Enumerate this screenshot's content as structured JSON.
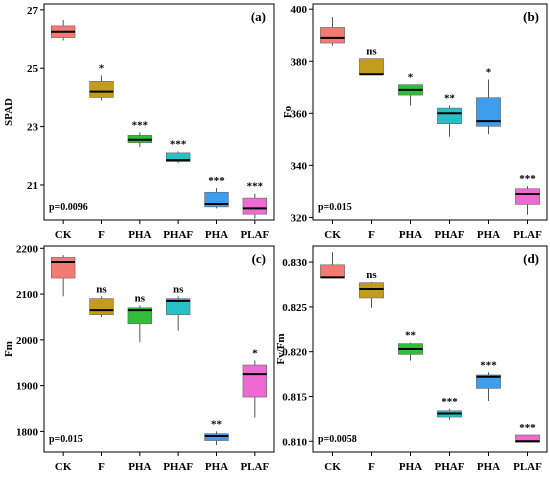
{
  "chart_data": [
    {
      "type": "box",
      "panel_label": "(a)",
      "ylabel": "SPAD",
      "categories": [
        "CK",
        "F",
        "PHA",
        "PHAF",
        "PHA",
        "PLAF"
      ],
      "yticks": [
        21,
        23,
        25,
        27
      ],
      "ylim": [
        19.8,
        27.2
      ],
      "p_label": "p=0.0096",
      "colors": [
        "#f47b72",
        "#c29c1d",
        "#2fbd3a",
        "#27c0c7",
        "#3d9ef0",
        "#f06ad4"
      ],
      "boxes": [
        {
          "min": 25.95,
          "q1": 26.05,
          "median": 26.25,
          "q3": 26.45,
          "max": 26.65,
          "sig": ""
        },
        {
          "min": 23.9,
          "q1": 24.0,
          "median": 24.2,
          "q3": 24.55,
          "max": 24.75,
          "sig": "*"
        },
        {
          "min": 22.3,
          "q1": 22.45,
          "median": 22.55,
          "q3": 22.7,
          "max": 22.8,
          "sig": "***"
        },
        {
          "min": 21.75,
          "q1": 21.8,
          "median": 21.85,
          "q3": 22.1,
          "max": 22.15,
          "sig": "***"
        },
        {
          "min": 20.2,
          "q1": 20.25,
          "median": 20.35,
          "q3": 20.75,
          "max": 20.9,
          "sig": "***"
        },
        {
          "min": 19.85,
          "q1": 20.0,
          "median": 20.2,
          "q3": 20.55,
          "max": 20.7,
          "sig": "***"
        }
      ]
    },
    {
      "type": "box",
      "panel_label": "(b)",
      "ylabel": "Fo",
      "categories": [
        "CK",
        "F",
        "PHA",
        "PHAF",
        "PHA",
        "PLAF"
      ],
      "yticks": [
        320,
        340,
        360,
        380,
        400
      ],
      "ylim": [
        319,
        402
      ],
      "p_label": "p=0.015",
      "colors": [
        "#f47b72",
        "#c29c1d",
        "#2fbd3a",
        "#27c0c7",
        "#3d9ef0",
        "#f06ad4"
      ],
      "boxes": [
        {
          "min": 386,
          "q1": 387,
          "median": 389,
          "q3": 393,
          "max": 397,
          "sig": ""
        },
        {
          "min": 375,
          "q1": 375,
          "median": 375,
          "q3": 381,
          "max": 381,
          "sig": "ns"
        },
        {
          "min": 363,
          "q1": 367,
          "median": 369,
          "q3": 371,
          "max": 371,
          "sig": "*"
        },
        {
          "min": 351,
          "q1": 356,
          "median": 360,
          "q3": 362,
          "max": 363,
          "sig": "**"
        },
        {
          "min": 352,
          "q1": 355,
          "median": 357,
          "q3": 366,
          "max": 373,
          "sig": "*"
        },
        {
          "min": 321,
          "q1": 325,
          "median": 329,
          "q3": 331,
          "max": 332,
          "sig": "***"
        }
      ]
    },
    {
      "type": "box",
      "panel_label": "(c)",
      "ylabel": "Fm",
      "categories": [
        "CK",
        "F",
        "PHA",
        "PHAF",
        "PHA",
        "PLAF"
      ],
      "yticks": [
        1800,
        1900,
        2000,
        2100,
        2200
      ],
      "ylim": [
        1755,
        2205
      ],
      "p_label": "p=0.015",
      "colors": [
        "#f47b72",
        "#c29c1d",
        "#2fbd3a",
        "#27c0c7",
        "#3d9ef0",
        "#f06ad4"
      ],
      "boxes": [
        {
          "min": 2095,
          "q1": 2135,
          "median": 2170,
          "q3": 2180,
          "max": 2185,
          "sig": ""
        },
        {
          "min": 2050,
          "q1": 2055,
          "median": 2065,
          "q3": 2090,
          "max": 2095,
          "sig": "ns"
        },
        {
          "min": 1995,
          "q1": 2035,
          "median": 2065,
          "q3": 2070,
          "max": 2075,
          "sig": "ns"
        },
        {
          "min": 2020,
          "q1": 2055,
          "median": 2085,
          "q3": 2090,
          "max": 2095,
          "sig": "ns"
        },
        {
          "min": 1770,
          "q1": 1780,
          "median": 1790,
          "q3": 1795,
          "max": 1800,
          "sig": "**"
        },
        {
          "min": 1830,
          "q1": 1875,
          "median": 1925,
          "q3": 1945,
          "max": 1955,
          "sig": "*"
        }
      ]
    },
    {
      "type": "box",
      "panel_label": "(d)",
      "ylabel": "Fv/Fm",
      "categories": [
        "CK",
        "F",
        "PHA",
        "PHAF",
        "PHA",
        "PLAF"
      ],
      "yticks": [
        0.81,
        0.815,
        0.82,
        0.825,
        0.83
      ],
      "ytick_labels": [
        "0.810",
        "0.815",
        "0.820",
        "0.825",
        "0.830"
      ],
      "ylim": [
        0.8088,
        0.8318
      ],
      "p_label": "p=0.0058",
      "colors": [
        "#f47b72",
        "#c29c1d",
        "#2fbd3a",
        "#27c0c7",
        "#3d9ef0",
        "#f06ad4"
      ],
      "boxes": [
        {
          "min": 0.8283,
          "q1": 0.8283,
          "median": 0.8283,
          "q3": 0.8297,
          "max": 0.8311,
          "sig": ""
        },
        {
          "min": 0.8249,
          "q1": 0.826,
          "median": 0.827,
          "q3": 0.8277,
          "max": 0.8278,
          "sig": "ns"
        },
        {
          "min": 0.819,
          "q1": 0.8197,
          "median": 0.8203,
          "q3": 0.8209,
          "max": 0.821,
          "sig": "**"
        },
        {
          "min": 0.8124,
          "q1": 0.8127,
          "median": 0.8131,
          "q3": 0.8134,
          "max": 0.8136,
          "sig": "***"
        },
        {
          "min": 0.8145,
          "q1": 0.8159,
          "median": 0.8172,
          "q3": 0.8174,
          "max": 0.8177,
          "sig": "***"
        },
        {
          "min": 0.8099,
          "q1": 0.8099,
          "median": 0.81,
          "q3": 0.8107,
          "max": 0.8107,
          "sig": "***"
        }
      ]
    }
  ]
}
